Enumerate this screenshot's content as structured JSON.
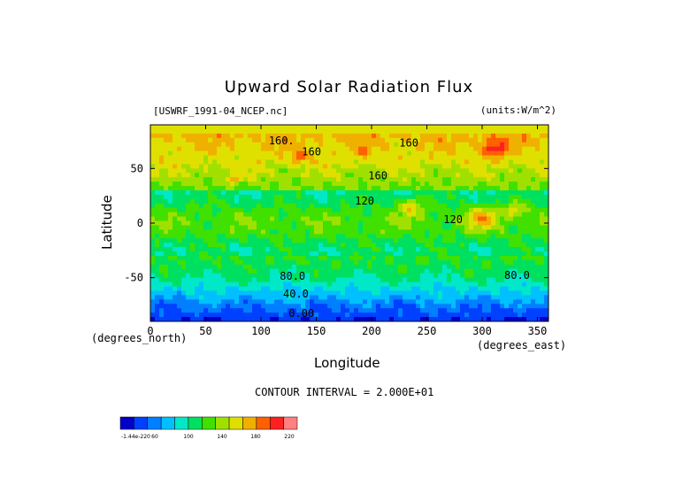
{
  "chart_data": {
    "type": "heatmap",
    "title": "Upward Solar Radiation Flux",
    "subtitle_left": "[USWRF_1991-04_NCEP.nc]",
    "subtitle_right": "(units:W/m^2)",
    "xlabel": "Longitude",
    "ylabel": "Latitude",
    "x_unit_label": "(degrees_east)",
    "y_unit_label": "(degrees_north)",
    "xlim": [
      0,
      360
    ],
    "ylim": [
      -90,
      90
    ],
    "x_ticks": [
      0,
      50,
      100,
      150,
      200,
      250,
      300,
      350
    ],
    "y_ticks": [
      -50,
      0,
      50
    ],
    "contour_interval_text": "CONTOUR INTERVAL = 2.000E+01",
    "contour_labels": [
      {
        "text": "160.",
        "lon": 107,
        "lat": 72
      },
      {
        "text": "160",
        "lon": 225,
        "lat": 70
      },
      {
        "text": "160",
        "lon": 137,
        "lat": 62
      },
      {
        "text": "160",
        "lon": 197,
        "lat": 40
      },
      {
        "text": "120",
        "lon": 185,
        "lat": 17
      },
      {
        "text": "120",
        "lon": 265,
        "lat": 0
      },
      {
        "text": "80.0",
        "lon": 117,
        "lat": -52
      },
      {
        "text": "80.0",
        "lon": 320,
        "lat": -51
      },
      {
        "text": "40.0",
        "lon": 120,
        "lat": -68
      },
      {
        "text": "0.00",
        "lon": 125,
        "lat": -86
      }
    ],
    "colorbar": {
      "colors": [
        "#0000c8",
        "#0040ff",
        "#0080ff",
        "#00c0ff",
        "#00e8c8",
        "#00e060",
        "#40e000",
        "#a0e000",
        "#e0e000",
        "#f0b000",
        "#ff6000",
        "#ff2020",
        "#ff8080"
      ],
      "labels": [
        "-1.44e-220",
        "60",
        "100",
        "140",
        "180",
        "220"
      ]
    }
  }
}
